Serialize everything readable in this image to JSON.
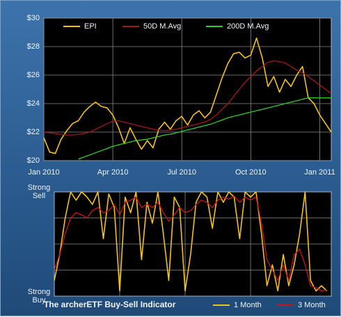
{
  "chart_data": [
    {
      "type": "line",
      "legend": "top",
      "x": [
        0,
        0.25,
        0.5,
        0.75,
        1,
        1.25,
        1.5,
        1.75,
        2,
        2.25,
        2.5,
        2.75,
        3,
        3.25,
        3.5,
        3.75,
        4,
        4.25,
        4.5,
        4.75,
        5,
        5.25,
        5.5,
        5.75,
        6,
        6.25,
        6.5,
        6.75,
        7,
        7.25,
        7.5,
        7.75,
        8,
        8.25,
        8.5,
        8.75,
        9,
        9.25,
        9.5,
        9.75,
        10,
        10.25,
        10.5,
        10.75,
        11,
        11.25,
        11.5,
        11.75,
        12,
        12.25,
        12.5
      ],
      "xlim": [
        0,
        12.5
      ],
      "xticks": [
        {
          "value": 0,
          "label": "Jan 2010"
        },
        {
          "value": 3,
          "label": "Apr 2010"
        },
        {
          "value": 6,
          "label": "Jul 2010"
        },
        {
          "value": 9,
          "label": "Oct 2010"
        },
        {
          "value": 12,
          "label": "Jan 2011"
        }
      ],
      "ylim": [
        20,
        30
      ],
      "yticks": [
        {
          "value": 20,
          "label": "$20"
        },
        {
          "value": 22,
          "label": "$22"
        },
        {
          "value": 24,
          "label": "$24"
        },
        {
          "value": 26,
          "label": "$26"
        },
        {
          "value": 28,
          "label": "$28"
        },
        {
          "value": 30,
          "label": "$30"
        }
      ],
      "grid": true,
      "series": [
        {
          "name": "EPI",
          "color": "#f2c21a",
          "values": [
            21.6,
            20.6,
            20.5,
            21.5,
            22.1,
            22.6,
            22.8,
            23.4,
            23.8,
            24.1,
            23.8,
            23.7,
            23.2,
            22.3,
            21.2,
            22.3,
            21.5,
            20.8,
            21.4,
            20.9,
            22.2,
            22.7,
            22.2,
            22.8,
            23.1,
            22.5,
            23.2,
            23.5,
            23.0,
            23.4,
            24.6,
            25.8,
            26.8,
            27.5,
            27.6,
            27.2,
            27.4,
            28.6,
            27.2,
            25.2,
            25.9,
            24.8,
            25.7,
            25.2,
            26.0,
            26.6,
            24.4,
            24.0,
            23.2,
            22.6,
            22.0
          ]
        },
        {
          "name": "50D M.Avg",
          "color": "#a3161c",
          "values": [
            22.0,
            21.95,
            21.9,
            21.85,
            21.8,
            21.8,
            21.85,
            21.9,
            22.0,
            22.2,
            22.4,
            22.6,
            22.75,
            22.8,
            22.7,
            22.6,
            22.5,
            22.4,
            22.3,
            22.2,
            22.15,
            22.1,
            22.15,
            22.2,
            22.3,
            22.4,
            22.5,
            22.6,
            22.7,
            22.9,
            23.2,
            23.6,
            24.0,
            24.5,
            25.0,
            25.5,
            25.9,
            26.3,
            26.6,
            26.9,
            27.0,
            26.95,
            26.85,
            26.6,
            26.35,
            26.15,
            25.9,
            25.6,
            25.3,
            25.0,
            24.7
          ]
        },
        {
          "name": "200D M.Avg",
          "color": "#2ad12a",
          "values": [
            null,
            null,
            null,
            null,
            null,
            null,
            20.1,
            20.25,
            20.4,
            20.55,
            20.7,
            20.85,
            21.0,
            21.1,
            21.2,
            21.3,
            21.4,
            21.45,
            21.5,
            21.6,
            21.7,
            21.8,
            21.85,
            21.95,
            22.05,
            22.15,
            22.25,
            22.35,
            22.45,
            22.55,
            22.7,
            22.85,
            23.0,
            23.1,
            23.2,
            23.3,
            23.4,
            23.5,
            23.6,
            23.7,
            23.8,
            23.9,
            24.0,
            24.1,
            24.2,
            24.3,
            24.4,
            24.4,
            24.4,
            24.4,
            24.4
          ]
        }
      ]
    },
    {
      "type": "line",
      "legend": "bottom",
      "title": "The archerETF Buy-Sell Indicator",
      "x": [
        0,
        0.25,
        0.5,
        0.75,
        1,
        1.25,
        1.5,
        1.75,
        2,
        2.25,
        2.5,
        2.75,
        3,
        3.25,
        3.5,
        3.75,
        4,
        4.25,
        4.5,
        4.75,
        5,
        5.25,
        5.5,
        5.75,
        6,
        6.25,
        6.5,
        6.75,
        7,
        7.25,
        7.5,
        7.75,
        8,
        8.25,
        8.5,
        8.75,
        9,
        9.25,
        9.5,
        9.75,
        10,
        10.25,
        10.5,
        10.75,
        11,
        11.25,
        11.5,
        11.75,
        12,
        12.25,
        12.5
      ],
      "xlim": [
        0,
        12.7
      ],
      "grid_x": [
        3,
        6,
        9
      ],
      "ylim": [
        0,
        100
      ],
      "yticks": [
        {
          "value": 0,
          "label": "Strong Buy"
        },
        {
          "value": 100,
          "label": "Strong Sell"
        }
      ],
      "grid_y": [
        25,
        50,
        75
      ],
      "series": [
        {
          "name": "1 Month",
          "color": "#f2c21a",
          "values": [
            15,
            40,
            75,
            100,
            92,
            100,
            95,
            88,
            100,
            55,
            98,
            85,
            5,
            95,
            80,
            100,
            35,
            90,
            70,
            100,
            60,
            15,
            95,
            85,
            5,
            40,
            90,
            100,
            95,
            65,
            100,
            90,
            100,
            95,
            55,
            100,
            95,
            100,
            60,
            10,
            30,
            5,
            40,
            10,
            30,
            60,
            100,
            15,
            5,
            10,
            5
          ]
        },
        {
          "name": "3 Month",
          "color": "#c8141c",
          "values": [
            25,
            40,
            60,
            75,
            80,
            78,
            75,
            82,
            85,
            80,
            82,
            88,
            78,
            90,
            92,
            95,
            85,
            88,
            85,
            90,
            80,
            72,
            78,
            85,
            80,
            82,
            88,
            92,
            90,
            85,
            92,
            95,
            93,
            96,
            90,
            95,
            92,
            95,
            70,
            35,
            25,
            15,
            30,
            15,
            40,
            45,
            30,
            10,
            8,
            5,
            6
          ]
        }
      ]
    }
  ]
}
